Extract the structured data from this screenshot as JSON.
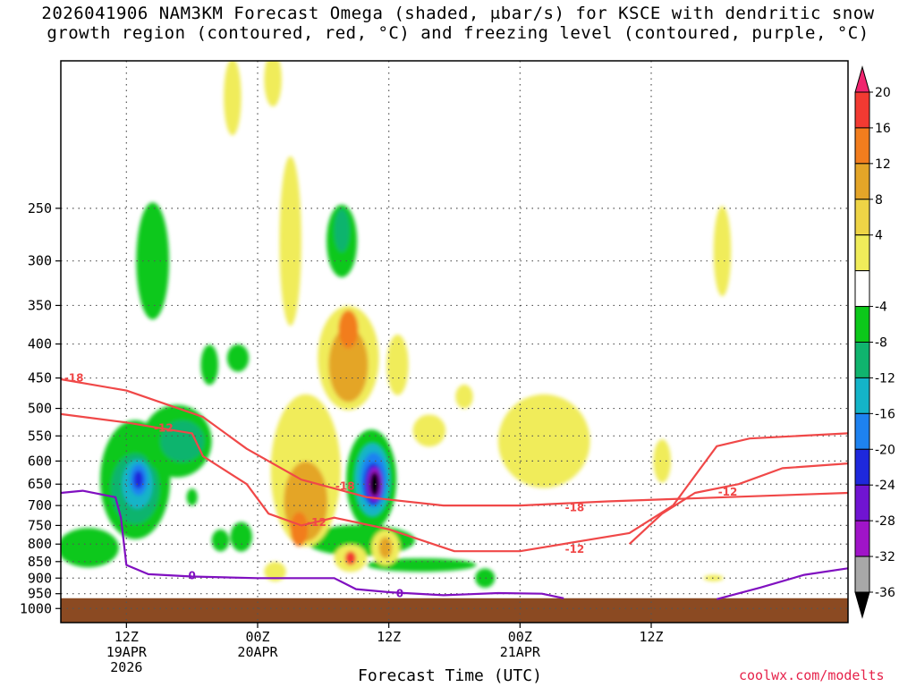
{
  "chart_data": {
    "type": "contour-cross-section",
    "title_line1": "2026041906 NAM3KM Forecast Omega (shaded, μbar/s) for KSCE with dendritic snow",
    "title_line2": "growth region (contoured, red, °C) and freezing level (contoured, purple, °C)",
    "xlabel": "Forecast Time (UTC)",
    "credit": "coolwx.com/modelts",
    "yaxis": {
      "scale": "log-pressure",
      "range_hpa": [
        1050,
        150
      ],
      "ticks": [
        "250",
        "300",
        "350",
        "400",
        "450",
        "500",
        "550",
        "600",
        "650",
        "700",
        "750",
        "800",
        "850",
        "900",
        "950",
        "1000"
      ]
    },
    "xaxis": {
      "range_hours": [
        0,
        72
      ],
      "ticks": [
        {
          "hour": 6,
          "lines": [
            "12Z",
            "19APR",
            "2026"
          ]
        },
        {
          "hour": 18,
          "lines": [
            "00Z",
            "20APR"
          ]
        },
        {
          "hour": 30,
          "lines": [
            "12Z"
          ]
        },
        {
          "hour": 42,
          "lines": [
            "00Z",
            "21APR"
          ]
        },
        {
          "hour": 54,
          "lines": [
            "12Z"
          ]
        }
      ]
    },
    "colorbar": {
      "labels": [
        "20",
        "16",
        "12",
        "8",
        "4",
        "-4",
        "-8",
        "-12",
        "-16",
        "-20",
        "-24",
        "-28",
        "-32",
        "-36"
      ],
      "colors": [
        "#f0246e",
        "#f23a32",
        "#f27d1e",
        "#e4a528",
        "#eed446",
        "#f0ec5a",
        "#ffffff",
        "#0cc81a",
        "#10b46e",
        "#14b4c8",
        "#1e82f0",
        "#1e28dc",
        "#7014d2",
        "#a014c8",
        "#a8a8a8",
        "#000000"
      ]
    },
    "omega_colors": {
      "up4": "#0cc81a",
      "up8": "#10b46e",
      "up12": "#14b4c8",
      "up16": "#1e82f0",
      "up20": "#1e28dc",
      "up24": "#7014d2",
      "up28": "#a014c8",
      "up32": "#a8a8a8",
      "up36": "#000000",
      "dn4": "#f0ec5a",
      "dn8": "#e4c246",
      "dn12": "#e4a528",
      "dn16": "#f27d1e",
      "dn20": "#f23a32"
    },
    "omega_regions": [
      {
        "level": "up4",
        "t": 2.5,
        "p": 810,
        "dt": 2.8,
        "dp": 110
      },
      {
        "level": "up4",
        "t": 6.8,
        "p": 640,
        "dt": 3.2,
        "dp": 260
      },
      {
        "level": "up8",
        "t": 6.8,
        "p": 660,
        "dt": 2.2,
        "dp": 160
      },
      {
        "level": "up12",
        "t": 7.0,
        "p": 650,
        "dt": 1.4,
        "dp": 110
      },
      {
        "level": "up16",
        "t": 7.1,
        "p": 640,
        "dt": 0.8,
        "dp": 70
      },
      {
        "level": "up20",
        "t": 7.1,
        "p": 640,
        "dt": 0.45,
        "dp": 40
      },
      {
        "level": "up4",
        "t": 8.4,
        "p": 300,
        "dt": 1.5,
        "dp": 120
      },
      {
        "level": "up4",
        "t": 10.6,
        "p": 560,
        "dt": 3.2,
        "dp": 140
      },
      {
        "level": "up8",
        "t": 11.1,
        "p": 560,
        "dt": 2.0,
        "dp": 80
      },
      {
        "level": "up4",
        "t": 13.6,
        "p": 430,
        "dt": 0.8,
        "dp": 60
      },
      {
        "level": "up4",
        "t": 16.2,
        "p": 420,
        "dt": 1.0,
        "dp": 40
      },
      {
        "level": "up4",
        "t": 12.0,
        "p": 680,
        "dt": 0.5,
        "dp": 40
      },
      {
        "level": "up4",
        "t": 14.6,
        "p": 790,
        "dt": 0.8,
        "dp": 60
      },
      {
        "level": "up4",
        "t": 16.5,
        "p": 780,
        "dt": 1.0,
        "dp": 80
      },
      {
        "level": "up4",
        "t": 25.7,
        "p": 280,
        "dt": 1.4,
        "dp": 70
      },
      {
        "level": "up8",
        "t": 25.7,
        "p": 270,
        "dt": 0.7,
        "dp": 40
      },
      {
        "level": "up4",
        "t": 27.4,
        "p": 790,
        "dt": 5.0,
        "dp": 85
      },
      {
        "level": "up4",
        "t": 33.0,
        "p": 860,
        "dt": 5.0,
        "dp": 40
      },
      {
        "level": "up4",
        "t": 38.8,
        "p": 900,
        "dt": 0.9,
        "dp": 60
      },
      {
        "level": "up4",
        "t": 28.4,
        "p": 640,
        "dt": 2.3,
        "dp": 220
      },
      {
        "level": "up12",
        "t": 28.5,
        "p": 640,
        "dt": 1.6,
        "dp": 160
      },
      {
        "level": "up16",
        "t": 28.6,
        "p": 640,
        "dt": 1.2,
        "dp": 120
      },
      {
        "level": "up20",
        "t": 28.6,
        "p": 650,
        "dt": 0.9,
        "dp": 95
      },
      {
        "level": "up28",
        "t": 28.7,
        "p": 650,
        "dt": 0.65,
        "dp": 75
      },
      {
        "level": "up36",
        "t": 28.7,
        "p": 650,
        "dt": 0.45,
        "dp": 55
      },
      {
        "level": "dn4",
        "t": 15.7,
        "p": 170,
        "dt": 0.8,
        "dp": 45
      },
      {
        "level": "dn4",
        "t": 19.4,
        "p": 160,
        "dt": 0.8,
        "dp": 30
      },
      {
        "level": "dn4",
        "t": 21.0,
        "p": 280,
        "dt": 1.0,
        "dp": 160
      },
      {
        "level": "dn4",
        "t": 26.3,
        "p": 420,
        "dt": 2.8,
        "dp": 150
      },
      {
        "level": "dn12",
        "t": 26.3,
        "p": 430,
        "dt": 1.8,
        "dp": 110
      },
      {
        "level": "dn16",
        "t": 26.3,
        "p": 380,
        "dt": 0.9,
        "dp": 50
      },
      {
        "level": "dn4",
        "t": 22.4,
        "p": 620,
        "dt": 3.2,
        "dp": 320
      },
      {
        "level": "dn12",
        "t": 22.4,
        "p": 690,
        "dt": 2.0,
        "dp": 190
      },
      {
        "level": "dn16",
        "t": 21.8,
        "p": 760,
        "dt": 0.8,
        "dp": 90
      },
      {
        "level": "dn4",
        "t": 30.8,
        "p": 430,
        "dt": 1.0,
        "dp": 90
      },
      {
        "level": "dn4",
        "t": 33.7,
        "p": 540,
        "dt": 1.5,
        "dp": 60
      },
      {
        "level": "dn4",
        "t": 36.9,
        "p": 480,
        "dt": 0.8,
        "dp": 40
      },
      {
        "level": "dn4",
        "t": 44.2,
        "p": 560,
        "dt": 4.2,
        "dp": 180
      },
      {
        "level": "dn4",
        "t": 55.0,
        "p": 600,
        "dt": 0.8,
        "dp": 90
      },
      {
        "level": "dn4",
        "t": 60.5,
        "p": 290,
        "dt": 0.8,
        "dp": 90
      },
      {
        "level": "dn4",
        "t": 59.7,
        "p": 900,
        "dt": 0.9,
        "dp": 20
      },
      {
        "level": "dn4",
        "t": 26.5,
        "p": 840,
        "dt": 1.5,
        "dp": 80
      },
      {
        "level": "dn20",
        "t": 26.5,
        "p": 840,
        "dt": 0.5,
        "dp": 40
      },
      {
        "level": "dn4",
        "t": 29.7,
        "p": 810,
        "dt": 1.3,
        "dp": 100
      },
      {
        "level": "dn12",
        "t": 29.7,
        "p": 810,
        "dt": 0.6,
        "dp": 60
      },
      {
        "level": "dn4",
        "t": 19.6,
        "p": 880,
        "dt": 1.0,
        "dp": 60
      }
    ],
    "red_contours": [
      {
        "label": "-18",
        "points": [
          [
            0,
            452
          ],
          [
            6,
            470
          ],
          [
            13,
            515
          ],
          [
            17,
            575
          ],
          [
            22,
            640
          ],
          [
            28,
            680
          ],
          [
            35,
            700
          ],
          [
            42,
            700
          ],
          [
            50,
            690
          ],
          [
            72,
            670
          ]
        ],
        "label_at": [
          [
            1.2,
            450
          ],
          [
            26,
            655
          ],
          [
            47,
            705
          ]
        ]
      },
      {
        "label": "-12",
        "points": [
          [
            0,
            510
          ],
          [
            6,
            525
          ],
          [
            9,
            535
          ],
          [
            12,
            545
          ],
          [
            13,
            590
          ],
          [
            17,
            650
          ],
          [
            19,
            720
          ],
          [
            22,
            750
          ],
          [
            25,
            730
          ],
          [
            30,
            760
          ],
          [
            36,
            820
          ],
          [
            42,
            820
          ],
          [
            52,
            770
          ],
          [
            56,
            700
          ],
          [
            60,
            570
          ],
          [
            63,
            555
          ],
          [
            72,
            545
          ]
        ],
        "label_at": [
          [
            9.4,
            535
          ],
          [
            23.4,
            742
          ],
          [
            47,
            815
          ]
        ]
      },
      {
        "label": "-12",
        "points": [
          [
            52,
            800
          ],
          [
            55,
            720
          ],
          [
            58,
            670
          ],
          [
            62,
            650
          ],
          [
            66,
            615
          ],
          [
            72,
            605
          ]
        ],
        "label_at": [
          [
            61,
            668
          ]
        ]
      }
    ],
    "purple_contours": [
      {
        "label": "0",
        "points": [
          [
            0,
            670
          ],
          [
            2,
            665
          ],
          [
            5,
            680
          ],
          [
            5.5,
            730
          ],
          [
            6,
            860
          ],
          [
            8,
            888
          ],
          [
            12,
            895
          ],
          [
            18,
            900
          ],
          [
            25,
            900
          ],
          [
            27,
            935
          ],
          [
            30,
            945
          ],
          [
            35,
            955
          ],
          [
            40,
            948
          ],
          [
            44,
            950
          ],
          [
            46,
            965
          ]
        ],
        "label_at": [
          [
            12,
            893
          ],
          [
            31,
            950
          ]
        ]
      },
      {
        "label": "",
        "points": [
          [
            60,
            968
          ],
          [
            64,
            930
          ],
          [
            68,
            890
          ],
          [
            72,
            870
          ]
        ],
        "label_at": []
      }
    ],
    "colors": {
      "red_line": "#f04848",
      "purple_line": "#8010c0",
      "terrain": "#8b4a22",
      "colorbar_label": ""
    },
    "terrain_top_hpa": 965,
    "grid": true
  }
}
